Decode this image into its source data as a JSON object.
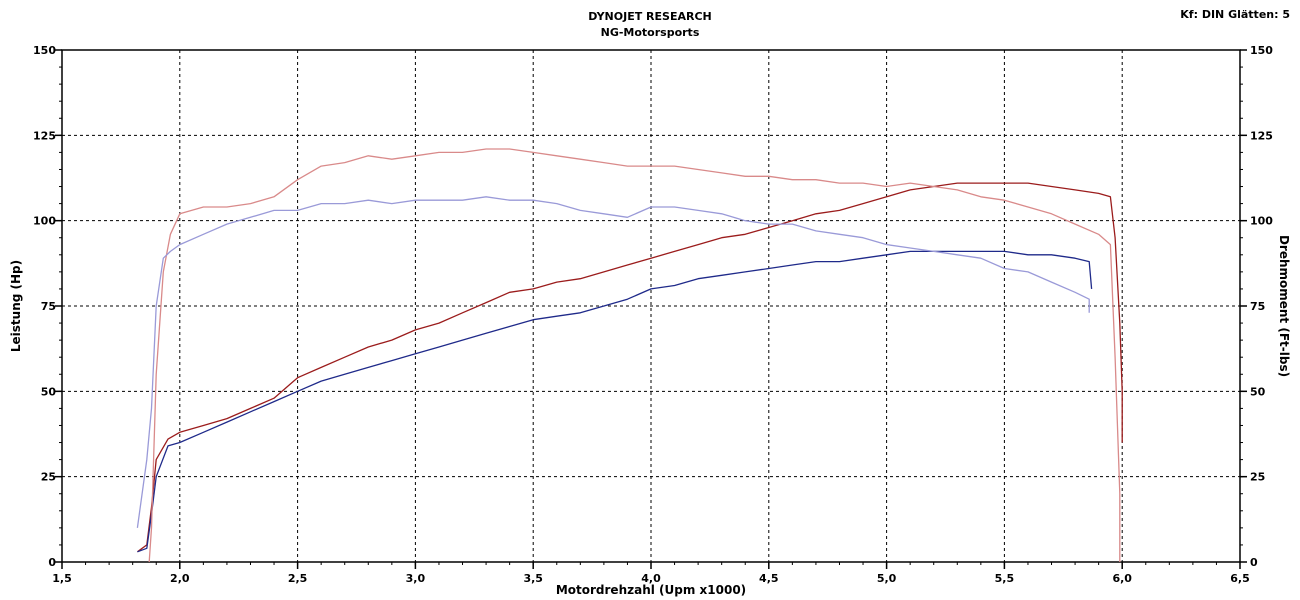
{
  "header": {
    "title": "DYNOJET RESEARCH",
    "subtitle": "NG-Motorsports",
    "corner_text": "Kf: DIN  Glätten: 5"
  },
  "chart_data": {
    "type": "line",
    "xlabel": "Motordrehzahl (Upm x1000)",
    "ylabel_left": "Leistung (Hp)",
    "ylabel_right": "Drehmoment (Ft-lbs)",
    "xlim": [
      1.5,
      6.5
    ],
    "ylim": [
      0,
      150
    ],
    "x_ticks": [
      "1,5",
      "2,0",
      "2,5",
      "3,0",
      "3,5",
      "4,0",
      "4,5",
      "5,0",
      "5,5",
      "6,0",
      "6,5"
    ],
    "y_ticks": [
      "0",
      "25",
      "50",
      "75",
      "100",
      "125",
      "150"
    ],
    "grid": true,
    "series": [
      {
        "axis": "left",
        "color": "#9b1c1c",
        "points": [
          [
            1.82,
            3
          ],
          [
            1.86,
            5
          ],
          [
            1.88,
            16
          ],
          [
            1.9,
            30
          ],
          [
            1.95,
            36
          ],
          [
            2.0,
            38
          ],
          [
            2.1,
            40
          ],
          [
            2.2,
            42
          ],
          [
            2.3,
            45
          ],
          [
            2.4,
            48
          ],
          [
            2.5,
            54
          ],
          [
            2.6,
            57
          ],
          [
            2.7,
            60
          ],
          [
            2.8,
            63
          ],
          [
            2.9,
            65
          ],
          [
            3.0,
            68
          ],
          [
            3.1,
            70
          ],
          [
            3.2,
            73
          ],
          [
            3.3,
            76
          ],
          [
            3.4,
            79
          ],
          [
            3.5,
            80
          ],
          [
            3.6,
            82
          ],
          [
            3.7,
            83
          ],
          [
            3.8,
            85
          ],
          [
            3.9,
            87
          ],
          [
            4.0,
            89
          ],
          [
            4.1,
            91
          ],
          [
            4.2,
            93
          ],
          [
            4.3,
            95
          ],
          [
            4.4,
            96
          ],
          [
            4.5,
            98
          ],
          [
            4.6,
            100
          ],
          [
            4.7,
            102
          ],
          [
            4.8,
            103
          ],
          [
            4.9,
            105
          ],
          [
            5.0,
            107
          ],
          [
            5.1,
            109
          ],
          [
            5.2,
            110
          ],
          [
            5.3,
            111
          ],
          [
            5.4,
            111
          ],
          [
            5.5,
            111
          ],
          [
            5.6,
            111
          ],
          [
            5.7,
            110
          ],
          [
            5.8,
            109
          ],
          [
            5.9,
            108
          ],
          [
            5.95,
            107
          ],
          [
            5.97,
            95
          ],
          [
            5.99,
            70
          ],
          [
            6.0,
            50
          ],
          [
            6.0,
            35
          ]
        ]
      },
      {
        "axis": "left",
        "color": "#1f2a8a",
        "points": [
          [
            1.82,
            3
          ],
          [
            1.86,
            4
          ],
          [
            1.88,
            14
          ],
          [
            1.9,
            25
          ],
          [
            1.95,
            34
          ],
          [
            2.0,
            35
          ],
          [
            2.1,
            38
          ],
          [
            2.2,
            41
          ],
          [
            2.3,
            44
          ],
          [
            2.4,
            47
          ],
          [
            2.5,
            50
          ],
          [
            2.6,
            53
          ],
          [
            2.7,
            55
          ],
          [
            2.8,
            57
          ],
          [
            2.9,
            59
          ],
          [
            3.0,
            61
          ],
          [
            3.1,
            63
          ],
          [
            3.2,
            65
          ],
          [
            3.3,
            67
          ],
          [
            3.4,
            69
          ],
          [
            3.5,
            71
          ],
          [
            3.6,
            72
          ],
          [
            3.7,
            73
          ],
          [
            3.8,
            75
          ],
          [
            3.9,
            77
          ],
          [
            4.0,
            80
          ],
          [
            4.1,
            81
          ],
          [
            4.2,
            83
          ],
          [
            4.3,
            84
          ],
          [
            4.4,
            85
          ],
          [
            4.5,
            86
          ],
          [
            4.6,
            87
          ],
          [
            4.7,
            88
          ],
          [
            4.8,
            88
          ],
          [
            4.9,
            89
          ],
          [
            5.0,
            90
          ],
          [
            5.1,
            91
          ],
          [
            5.2,
            91
          ],
          [
            5.3,
            91
          ],
          [
            5.4,
            91
          ],
          [
            5.5,
            91
          ],
          [
            5.6,
            90
          ],
          [
            5.7,
            90
          ],
          [
            5.8,
            89
          ],
          [
            5.86,
            88
          ],
          [
            5.87,
            80
          ]
        ]
      },
      {
        "axis": "right",
        "color": "#d98a8a",
        "points": [
          [
            1.87,
            0
          ],
          [
            1.88,
            10
          ],
          [
            1.9,
            55
          ],
          [
            1.93,
            85
          ],
          [
            1.96,
            96
          ],
          [
            2.0,
            102
          ],
          [
            2.1,
            104
          ],
          [
            2.2,
            104
          ],
          [
            2.3,
            105
          ],
          [
            2.4,
            107
          ],
          [
            2.5,
            112
          ],
          [
            2.6,
            116
          ],
          [
            2.7,
            117
          ],
          [
            2.8,
            119
          ],
          [
            2.9,
            118
          ],
          [
            3.0,
            119
          ],
          [
            3.1,
            120
          ],
          [
            3.2,
            120
          ],
          [
            3.3,
            121
          ],
          [
            3.4,
            121
          ],
          [
            3.5,
            120
          ],
          [
            3.6,
            119
          ],
          [
            3.7,
            118
          ],
          [
            3.8,
            117
          ],
          [
            3.9,
            116
          ],
          [
            4.0,
            116
          ],
          [
            4.1,
            116
          ],
          [
            4.2,
            115
          ],
          [
            4.3,
            114
          ],
          [
            4.4,
            113
          ],
          [
            4.5,
            113
          ],
          [
            4.6,
            112
          ],
          [
            4.7,
            112
          ],
          [
            4.8,
            111
          ],
          [
            4.9,
            111
          ],
          [
            5.0,
            110
          ],
          [
            5.1,
            111
          ],
          [
            5.2,
            110
          ],
          [
            5.3,
            109
          ],
          [
            5.4,
            107
          ],
          [
            5.5,
            106
          ],
          [
            5.6,
            104
          ],
          [
            5.7,
            102
          ],
          [
            5.8,
            99
          ],
          [
            5.9,
            96
          ],
          [
            5.95,
            93
          ],
          [
            5.97,
            60
          ],
          [
            5.99,
            20
          ],
          [
            5.99,
            0
          ]
        ]
      },
      {
        "axis": "right",
        "color": "#9a9ad8",
        "points": [
          [
            1.82,
            10
          ],
          [
            1.86,
            30
          ],
          [
            1.88,
            45
          ],
          [
            1.9,
            75
          ],
          [
            1.93,
            89
          ],
          [
            1.96,
            91
          ],
          [
            2.0,
            93
          ],
          [
            2.1,
            96
          ],
          [
            2.2,
            99
          ],
          [
            2.3,
            101
          ],
          [
            2.4,
            103
          ],
          [
            2.5,
            103
          ],
          [
            2.6,
            105
          ],
          [
            2.7,
            105
          ],
          [
            2.8,
            106
          ],
          [
            2.9,
            105
          ],
          [
            3.0,
            106
          ],
          [
            3.1,
            106
          ],
          [
            3.2,
            106
          ],
          [
            3.3,
            107
          ],
          [
            3.4,
            106
          ],
          [
            3.5,
            106
          ],
          [
            3.6,
            105
          ],
          [
            3.7,
            103
          ],
          [
            3.8,
            102
          ],
          [
            3.9,
            101
          ],
          [
            4.0,
            104
          ],
          [
            4.1,
            104
          ],
          [
            4.2,
            103
          ],
          [
            4.3,
            102
          ],
          [
            4.4,
            100
          ],
          [
            4.5,
            99
          ],
          [
            4.6,
            99
          ],
          [
            4.7,
            97
          ],
          [
            4.8,
            96
          ],
          [
            4.9,
            95
          ],
          [
            5.0,
            93
          ],
          [
            5.1,
            92
          ],
          [
            5.2,
            91
          ],
          [
            5.3,
            90
          ],
          [
            5.4,
            89
          ],
          [
            5.5,
            86
          ],
          [
            5.6,
            85
          ],
          [
            5.7,
            82
          ],
          [
            5.8,
            79
          ],
          [
            5.86,
            77
          ],
          [
            5.86,
            73
          ]
        ]
      }
    ]
  }
}
